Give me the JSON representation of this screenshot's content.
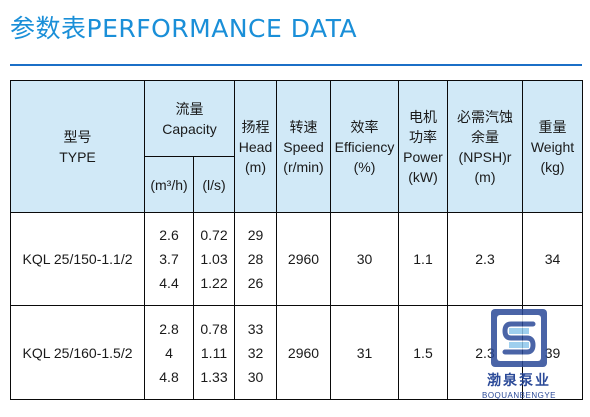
{
  "title": "参数表PERFORMANCE DATA",
  "headers": {
    "model_cn": "型号",
    "model_en": "TYPE",
    "capacity_cn": "流量",
    "capacity_en": "Capacity",
    "capacity_unit_m3h": "(m³/h)",
    "capacity_unit_ls": "(l/s)",
    "head_cn": "扬程",
    "head_en": "Head",
    "head_unit": "(m)",
    "speed_cn": "转速",
    "speed_en": "Speed",
    "speed_unit": "(r/min)",
    "eff_cn": "效率",
    "eff_en": "Efficiency",
    "eff_unit": "(%)",
    "power_cn1": "电机",
    "power_cn2": "功率",
    "power_en": "Power",
    "power_unit": "(kW)",
    "npsh_cn1": "必需汽蚀",
    "npsh_cn2": "余量",
    "npsh_en": "(NPSH)r",
    "npsh_unit": "(m)",
    "weight_cn": "重量",
    "weight_en": "Weight",
    "weight_unit": "(kg)"
  },
  "rows": [
    {
      "type": "KQL 25/150-1.1/2",
      "q_m3h": [
        "2.6",
        "3.7",
        "4.4"
      ],
      "q_ls": [
        "0.72",
        "1.03",
        "1.22"
      ],
      "head": [
        "29",
        "28",
        "26"
      ],
      "speed": "2960",
      "efficiency": "30",
      "power": "1.1",
      "npsh": "2.3",
      "weight": "34"
    },
    {
      "type": "KQL 25/160-1.5/2",
      "q_m3h": [
        "2.8",
        "4",
        "4.8"
      ],
      "q_ls": [
        "0.78",
        "1.11",
        "1.33"
      ],
      "head": [
        "33",
        "32",
        "30"
      ],
      "speed": "2960",
      "efficiency": "31",
      "power": "1.5",
      "npsh": "2.3",
      "weight": "39"
    }
  ],
  "watermark": {
    "name": "渤泉泵业",
    "sub": "BOQUANBENGYE"
  },
  "colors": {
    "title": "#1a8fd8",
    "rule": "#1b6fc7",
    "header_bg": "#d1e9f7",
    "border": "#0a0a0a"
  }
}
